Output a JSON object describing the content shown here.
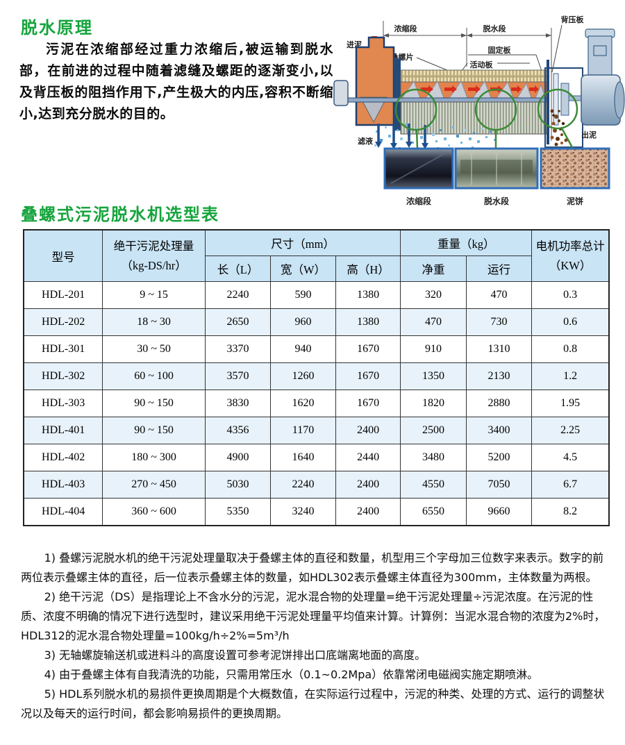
{
  "page": {
    "section1_title": "脱水原理",
    "principle_text": "污泥在浓缩部经过重力浓缩后,被运输到脱水部，在前进的过程中随着滤缝及螺距的逐渐变小,以及背压板的阻挡作用下,产生极大的内压,容积不断缩小,达到充分脱水的目的。",
    "section2_title": "叠螺式污泥脱水机选型表"
  },
  "diagram": {
    "labels": {
      "inlet": "进泥",
      "thickening_zone": "浓缩段",
      "dewatering_zone": "脱水段",
      "back_pressure_plate": "背压板",
      "screw_plate": "叠螺片",
      "fixed_plate": "固定板",
      "moving_plate": "活动板",
      "filtrate": "滤液",
      "cake_outlet": "出泥"
    },
    "photo_captions": [
      "浓缩段",
      "脱水段",
      "泥饼"
    ]
  },
  "table": {
    "headers": {
      "model": "型号",
      "capacity_line1": "绝干污泥处理量",
      "capacity_line2": "（kg-DS/hr）",
      "dimensions": "尺寸（mm）",
      "length": "长（L）",
      "width": "宽（W）",
      "height": "高（H）",
      "weight": "重量（kg）",
      "net_weight": "净重",
      "operating": "运行",
      "power_line1": "电机功率总计",
      "power_line2": "（KW）"
    },
    "rows": [
      [
        "HDL-201",
        "9 ~ 15",
        "2240",
        "590",
        "1380",
        "320",
        "470",
        "0.3"
      ],
      [
        "HDL-202",
        "18 ~ 30",
        "2650",
        "960",
        "1380",
        "470",
        "730",
        "0.6"
      ],
      [
        "HDL-301",
        "30 ~ 50",
        "3370",
        "940",
        "1670",
        "910",
        "1310",
        "0.8"
      ],
      [
        "HDL-302",
        "60 ~ 100",
        "3570",
        "1260",
        "1670",
        "1350",
        "2130",
        "1.2"
      ],
      [
        "HDL-303",
        "90 ~ 150",
        "3830",
        "1620",
        "1670",
        "1820",
        "2880",
        "1.95"
      ],
      [
        "HDL-401",
        "90 ~ 150",
        "4356",
        "1170",
        "2400",
        "2500",
        "3400",
        "2.25"
      ],
      [
        "HDL-402",
        "180 ~ 300",
        "4900",
        "1640",
        "2440",
        "3480",
        "5200",
        "4.5"
      ],
      [
        "HDL-403",
        "270 ~ 450",
        "5030",
        "2240",
        "2400",
        "4550",
        "7050",
        "6.7"
      ],
      [
        "HDL-404",
        "360 ~ 600",
        "5350",
        "3240",
        "2400",
        "6550",
        "9660",
        "8.2"
      ]
    ]
  },
  "notes": [
    "1) 叠螺污泥脱水机的绝干污泥处理量取决于叠螺主体的直径和数量，机型用三个字母加三位数字来表示。数字的前两位表示叠螺主体的直径，后一位表示叠螺主体的数量，如HDL302表示叠螺主体直径为300mm，主体数量为两根。",
    "2) 绝干污泥（DS）是指理论上不含水分的污泥，泥水混合物的处理量=绝干污泥处理量÷污泥浓度。在污泥的性质、浓度不明确的情况下进行选型时，建议采用绝干污泥处理量平均值来计算。计算例：当泥水混合物的浓度为2%时，HDL312的泥水混合物处理量=100kg/h÷2%=5m³/h",
    "3) 无轴螺旋输送机或进料斗的高度设置可参考泥饼排出口底端离地面的高度。",
    "4) 由于叠螺主体有自我清洗的功能，只需用常压水（0.1~0.2Mpa）依靠常闭电磁阀实施定期喷淋。",
    "5) HDL系列脱水机的易损件更换周期是个大概数值，在实际运行过程中，污泥的种类、处理的方式、运行的调整状况以及每天的运行时间，都会影响易损件的更换周期。"
  ],
  "colors": {
    "accent_green": "#15a43c",
    "table_header_bg": "#c9e4f5",
    "table_alt_row_bg": "#e8f2fa",
    "diagram_body_orange": "#e2834d",
    "diagram_navy": "#23487a",
    "magnifier_green": "#3a8a35",
    "photo_border_blue": "#2f6db8",
    "red_arrow": "#d92b1b"
  }
}
